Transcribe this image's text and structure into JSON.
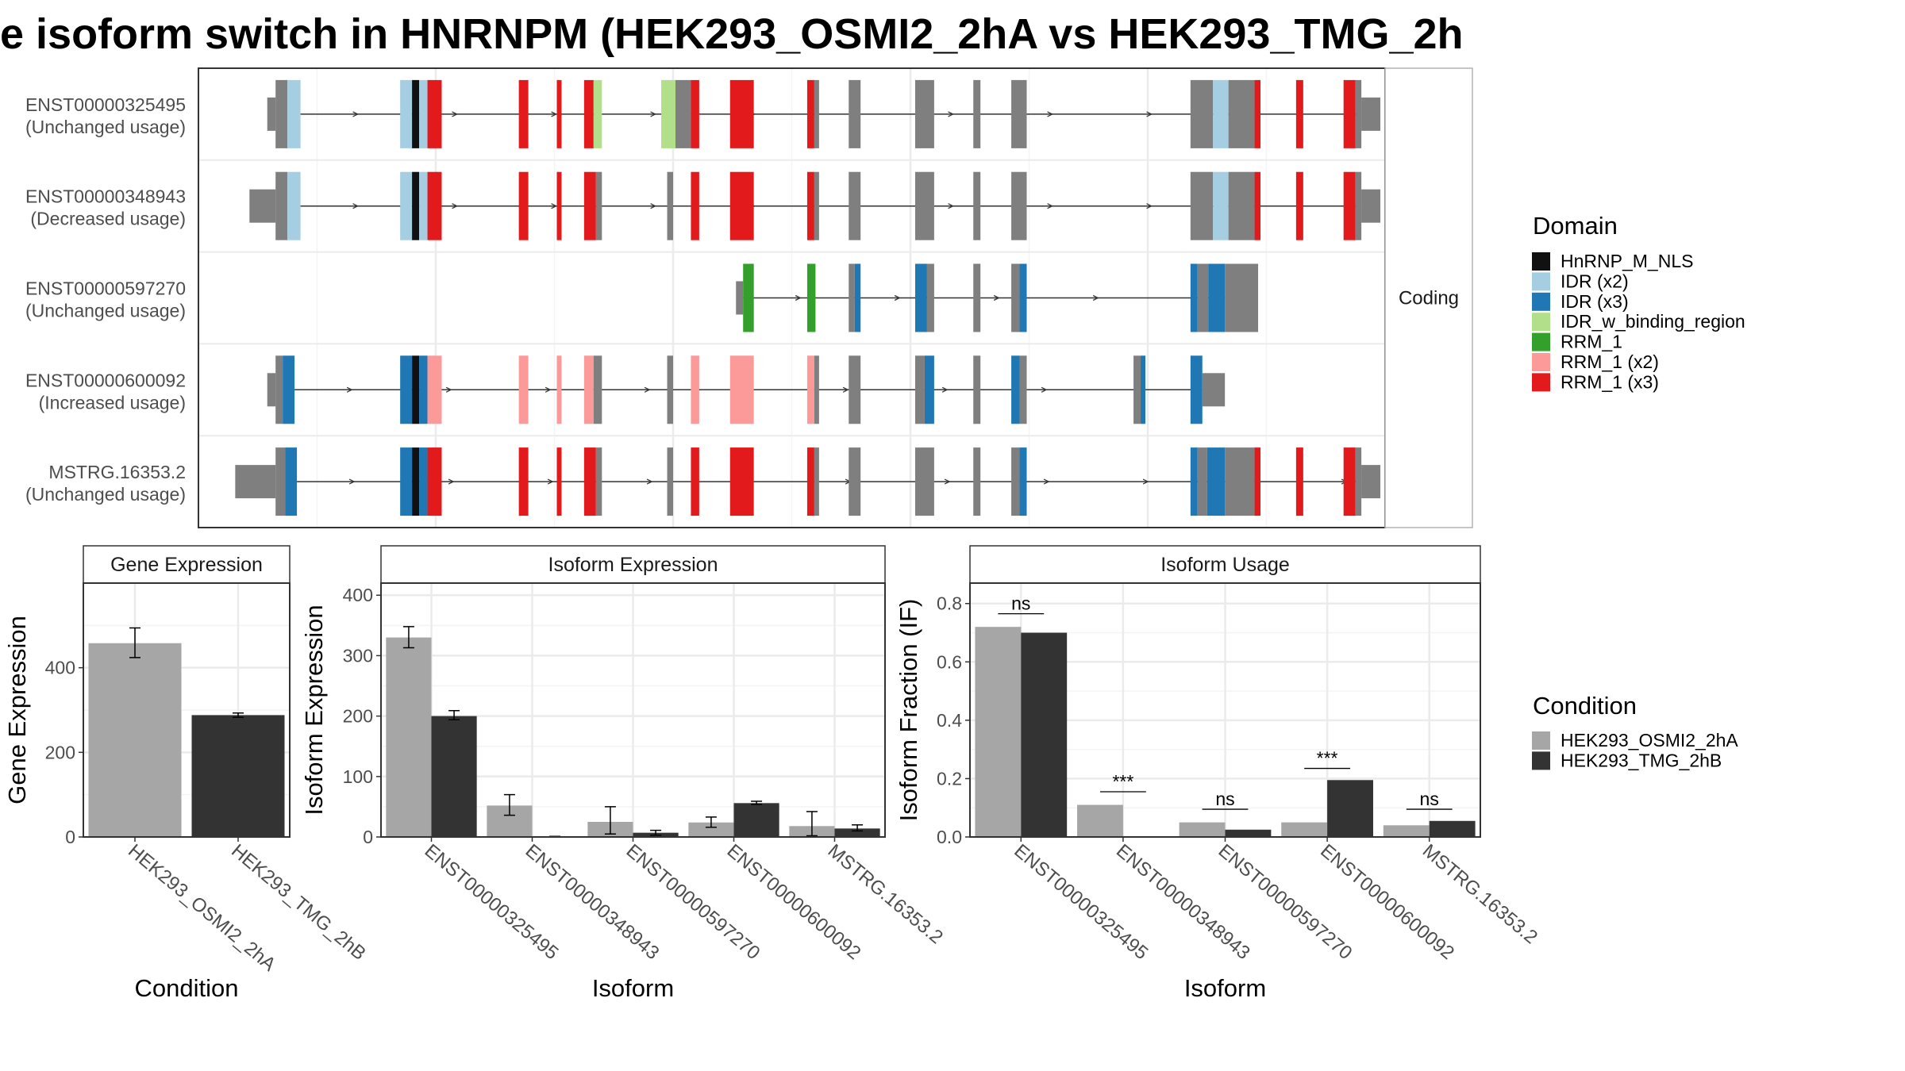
{
  "title": "e isoform switch in HNRNPM (HEK293_OSMI2_2hA vs HEK293_TMG_2h",
  "colors": {
    "HnRNP_M_NLS": "#111111",
    "IDR (x2)": "#a6cee3",
    "IDR (x3)": "#1f78b4",
    "IDR_w_binding_region": "#b2df8a",
    "RRM_1": "#33a02c",
    "RRM_1 (x2)": "#fb9a99",
    "RRM_1 (x3)": "#e31a1c",
    "exon": "#7f7f7f",
    "cond_a": "#a6a6a6",
    "cond_b": "#333333"
  },
  "chart_data": [
    {
      "type": "gene-structure",
      "facet_label": "Coding",
      "xlim": [
        0,
        100
      ],
      "transcripts": [
        {
          "id": "ENST00000325495",
          "usage": "(Unchanged usage)",
          "segments": [
            [
              5.8,
              6.5,
              "utr"
            ],
            [
              6.5,
              7.5,
              "exon"
            ],
            [
              7.5,
              8.6,
              "IDR (x2)"
            ],
            [
              17,
              18,
              "IDR (x2)"
            ],
            [
              18,
              18.6,
              "HnRNP_M_NLS"
            ],
            [
              18.6,
              19.3,
              "IDR (x2)"
            ],
            [
              19.3,
              20.5,
              "RRM_1 (x3)"
            ],
            [
              27,
              27.8,
              "RRM_1 (x3)"
            ],
            [
              30.2,
              30.6,
              "RRM_1 (x3)"
            ],
            [
              32.5,
              33.3,
              "RRM_1 (x3)"
            ],
            [
              33.3,
              34,
              "IDR_w_binding_region"
            ],
            [
              39,
              40.2,
              "IDR_w_binding_region"
            ],
            [
              40.2,
              41.5,
              "exon"
            ],
            [
              41.5,
              42.2,
              "RRM_1 (x3)"
            ],
            [
              44.8,
              46.8,
              "RRM_1 (x3)"
            ],
            [
              51.3,
              51.9,
              "RRM_1 (x3)"
            ],
            [
              51.9,
              52.3,
              "exon"
            ],
            [
              54.8,
              55.8,
              "exon"
            ],
            [
              60.4,
              62,
              "exon"
            ],
            [
              65.3,
              65.9,
              "exon"
            ],
            [
              68.5,
              69.8,
              "exon"
            ],
            [
              83.6,
              85.5,
              "exon"
            ],
            [
              85.5,
              86.8,
              "IDR (x2)"
            ],
            [
              86.8,
              89,
              "exon"
            ],
            [
              89,
              89.5,
              "RRM_1 (x3)"
            ],
            [
              92.5,
              93.1,
              "RRM_1 (x3)"
            ],
            [
              96.5,
              97.5,
              "RRM_1 (x3)"
            ],
            [
              97.5,
              98,
              "exon"
            ],
            [
              98,
              99.6,
              "utr"
            ]
          ],
          "intron": [
            8.6,
            98
          ]
        },
        {
          "id": "ENST00000348943",
          "usage": "(Decreased usage)",
          "segments": [
            [
              4.3,
              6.5,
              "utr"
            ],
            [
              6.5,
              7.5,
              "exon"
            ],
            [
              7.5,
              8.6,
              "IDR (x2)"
            ],
            [
              17,
              18,
              "IDR (x2)"
            ],
            [
              18,
              18.6,
              "HnRNP_M_NLS"
            ],
            [
              18.6,
              19.3,
              "IDR (x2)"
            ],
            [
              19.3,
              20.5,
              "RRM_1 (x3)"
            ],
            [
              27,
              27.8,
              "RRM_1 (x3)"
            ],
            [
              30.2,
              30.6,
              "RRM_1 (x3)"
            ],
            [
              32.5,
              33.5,
              "RRM_1 (x3)"
            ],
            [
              33.5,
              34,
              "exon"
            ],
            [
              39.5,
              40,
              "exon"
            ],
            [
              41.5,
              42.2,
              "RRM_1 (x3)"
            ],
            [
              44.8,
              46.8,
              "RRM_1 (x3)"
            ],
            [
              51.3,
              51.9,
              "RRM_1 (x3)"
            ],
            [
              51.9,
              52.3,
              "exon"
            ],
            [
              54.8,
              55.8,
              "exon"
            ],
            [
              60.4,
              62,
              "exon"
            ],
            [
              65.3,
              65.9,
              "exon"
            ],
            [
              68.5,
              69.8,
              "exon"
            ],
            [
              83.6,
              85.5,
              "exon"
            ],
            [
              85.5,
              86.8,
              "IDR (x2)"
            ],
            [
              86.8,
              89,
              "exon"
            ],
            [
              89,
              89.5,
              "RRM_1 (x3)"
            ],
            [
              92.5,
              93.1,
              "RRM_1 (x3)"
            ],
            [
              96.5,
              97.5,
              "RRM_1 (x3)"
            ],
            [
              97.5,
              98,
              "exon"
            ],
            [
              98,
              99.6,
              "utr"
            ]
          ],
          "intron": [
            8.6,
            98
          ]
        },
        {
          "id": "ENST00000597270",
          "usage": "(Unchanged usage)",
          "segments": [
            [
              45.3,
              45.9,
              "utr"
            ],
            [
              45.9,
              46.8,
              "RRM_1"
            ],
            [
              51.3,
              52,
              "RRM_1"
            ],
            [
              54.8,
              55.3,
              "exon"
            ],
            [
              55.3,
              55.8,
              "IDR (x3)"
            ],
            [
              60.4,
              61.4,
              "IDR (x3)"
            ],
            [
              61.4,
              62,
              "exon"
            ],
            [
              65.3,
              65.9,
              "exon"
            ],
            [
              68.5,
              69.2,
              "exon"
            ],
            [
              69.2,
              69.8,
              "IDR (x3)"
            ],
            [
              83.6,
              84.2,
              "IDR (x3)"
            ],
            [
              84.2,
              85.1,
              "exon"
            ],
            [
              85.1,
              86.5,
              "IDR (x3)"
            ],
            [
              86.5,
              89.3,
              "exon"
            ]
          ],
          "intron": [
            45.9,
            86.5
          ]
        },
        {
          "id": "ENST00000600092",
          "usage": "(Increased usage)",
          "segments": [
            [
              5.8,
              6.5,
              "utr"
            ],
            [
              6.5,
              7.1,
              "exon"
            ],
            [
              7.1,
              8.1,
              "IDR (x3)"
            ],
            [
              17,
              18,
              "IDR (x3)"
            ],
            [
              18,
              18.6,
              "HnRNP_M_NLS"
            ],
            [
              18.6,
              19.3,
              "IDR (x3)"
            ],
            [
              19.3,
              20.5,
              "RRM_1 (x2)"
            ],
            [
              27,
              27.8,
              "RRM_1 (x2)"
            ],
            [
              30.2,
              30.6,
              "RRM_1 (x2)"
            ],
            [
              32.5,
              33.3,
              "RRM_1 (x2)"
            ],
            [
              33.3,
              34,
              "exon"
            ],
            [
              39.5,
              40,
              "exon"
            ],
            [
              41.5,
              42.2,
              "RRM_1 (x2)"
            ],
            [
              44.8,
              46.8,
              "RRM_1 (x2)"
            ],
            [
              51.3,
              51.9,
              "RRM_1 (x2)"
            ],
            [
              51.9,
              52.3,
              "exon"
            ],
            [
              54.8,
              55.8,
              "exon"
            ],
            [
              60.4,
              61.2,
              "exon"
            ],
            [
              61.2,
              62,
              "IDR (x3)"
            ],
            [
              65.3,
              65.9,
              "exon"
            ],
            [
              68.5,
              69.2,
              "IDR (x3)"
            ],
            [
              69.2,
              69.8,
              "exon"
            ],
            [
              78.8,
              79.4,
              "exon"
            ],
            [
              79.4,
              79.8,
              "IDR (x3)"
            ],
            [
              83.6,
              84.6,
              "IDR (x3)"
            ],
            [
              84.6,
              86.5,
              "utr"
            ]
          ],
          "intron": [
            8.1,
            84.6
          ]
        },
        {
          "id": "MSTRG.16353.2",
          "usage": "(Unchanged usage)",
          "segments": [
            [
              3.1,
              6.5,
              "utr"
            ],
            [
              6.5,
              7.3,
              "exon"
            ],
            [
              7.3,
              8.3,
              "IDR (x3)"
            ],
            [
              17,
              18,
              "IDR (x3)"
            ],
            [
              18,
              18.6,
              "HnRNP_M_NLS"
            ],
            [
              18.6,
              19.3,
              "IDR (x3)"
            ],
            [
              19.3,
              20.5,
              "RRM_1 (x3)"
            ],
            [
              27,
              27.8,
              "RRM_1 (x3)"
            ],
            [
              30.2,
              30.6,
              "RRM_1 (x3)"
            ],
            [
              32.5,
              33.5,
              "RRM_1 (x3)"
            ],
            [
              33.5,
              34,
              "exon"
            ],
            [
              39.5,
              40,
              "exon"
            ],
            [
              41.5,
              42.2,
              "RRM_1 (x3)"
            ],
            [
              44.8,
              46.8,
              "RRM_1 (x3)"
            ],
            [
              51.3,
              51.9,
              "RRM_1 (x3)"
            ],
            [
              51.9,
              52.3,
              "exon"
            ],
            [
              54.8,
              55.8,
              "exon"
            ],
            [
              60.4,
              62,
              "exon"
            ],
            [
              65.3,
              65.9,
              "exon"
            ],
            [
              68.5,
              69.2,
              "exon"
            ],
            [
              69.2,
              69.8,
              "IDR (x3)"
            ],
            [
              83.6,
              84.2,
              "IDR (x3)"
            ],
            [
              84.2,
              85,
              "exon"
            ],
            [
              85,
              86.5,
              "IDR (x3)"
            ],
            [
              86.5,
              89,
              "exon"
            ],
            [
              89,
              89.5,
              "RRM_1 (x3)"
            ],
            [
              92.5,
              93.1,
              "RRM_1 (x3)"
            ],
            [
              96.5,
              97.5,
              "RRM_1 (x3)"
            ],
            [
              97.5,
              98,
              "exon"
            ],
            [
              98,
              99.6,
              "utr"
            ]
          ],
          "intron": [
            8.3,
            98
          ]
        }
      ]
    },
    {
      "type": "bar",
      "title": "Gene Expression",
      "xlabel": "Condition",
      "ylabel": "Gene Expression",
      "ylim": [
        0,
        600
      ],
      "yticks": [
        0,
        200,
        400
      ],
      "categories": [
        "HEK293_OSMI2_2hA",
        "HEK293_TMG_2hB"
      ],
      "values": [
        458,
        288
      ],
      "errors": [
        [
          424,
          494
        ],
        [
          283,
          293
        ]
      ]
    },
    {
      "type": "bar",
      "title": "Isoform Expression",
      "xlabel": "Isoform",
      "ylabel": "Isoform Expression",
      "ylim": [
        0,
        420
      ],
      "yticks": [
        0,
        100,
        200,
        300,
        400
      ],
      "categories": [
        "ENST00000325495",
        "ENST00000348943",
        "ENST00000597270",
        "ENST00000600092",
        "MSTRG.16353.2"
      ],
      "series": [
        {
          "name": "HEK293_OSMI2_2hA",
          "values": [
            330,
            52,
            25,
            24,
            18
          ],
          "errors": [
            [
              313,
              348
            ],
            [
              36,
              70
            ],
            [
              5,
              50
            ],
            [
              16,
              33
            ],
            [
              2,
              42
            ]
          ]
        },
        {
          "name": "HEK293_TMG_2hB",
          "values": [
            200,
            0,
            7,
            56,
            14
          ],
          "errors": [
            [
              194,
              209
            ],
            [
              0,
              1
            ],
            [
              3,
              11
            ],
            [
              54,
              59
            ],
            [
              10,
              20
            ]
          ]
        }
      ]
    },
    {
      "type": "bar",
      "title": "Isoform Usage",
      "xlabel": "Isoform",
      "ylabel": "Isoform Fraction (IF)",
      "ylim": [
        0,
        0.87
      ],
      "yticks": [
        "0.0",
        "0.2",
        "0.4",
        "0.6",
        "0.8"
      ],
      "categories": [
        "ENST00000325495",
        "ENST00000348943",
        "ENST00000597270",
        "ENST00000600092",
        "MSTRG.16353.2"
      ],
      "series": [
        {
          "name": "HEK293_OSMI2_2hA",
          "values": [
            0.72,
            0.11,
            0.05,
            0.05,
            0.04
          ]
        },
        {
          "name": "HEK293_TMG_2hB",
          "values": [
            0.7,
            0.0,
            0.025,
            0.195,
            0.055
          ]
        }
      ],
      "significance": [
        "ns",
        "***",
        "ns",
        "***",
        "ns"
      ],
      "sig_y": [
        0.765,
        0.155,
        0.095,
        0.235,
        0.095
      ]
    }
  ],
  "legend_domain": {
    "title": "Domain",
    "items": [
      "HnRNP_M_NLS",
      "IDR (x2)",
      "IDR (x3)",
      "IDR_w_binding_region",
      "RRM_1",
      "RRM_1 (x2)",
      "RRM_1 (x3)"
    ]
  },
  "legend_condition": {
    "title": "Condition",
    "items": [
      "HEK293_OSMI2_2hA",
      "HEK293_TMG_2hB"
    ]
  }
}
